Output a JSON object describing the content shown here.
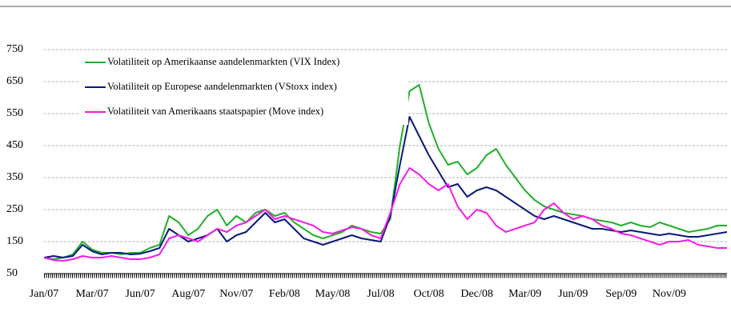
{
  "chart_data": {
    "type": "line",
    "categories": [
      "Jan/07",
      null,
      null,
      null,
      null,
      "Mar/07",
      null,
      null,
      null,
      null,
      "Jun/07",
      null,
      null,
      null,
      null,
      "Aug/07",
      null,
      null,
      null,
      null,
      "Nov/07",
      null,
      null,
      null,
      null,
      "Feb/08",
      null,
      null,
      null,
      null,
      "May/08",
      null,
      null,
      null,
      null,
      "Jul/08",
      null,
      null,
      null,
      null,
      "Oct/08",
      null,
      null,
      null,
      null,
      "Dec/08",
      null,
      null,
      null,
      null,
      "Mar/09",
      null,
      null,
      null,
      null,
      "Jun/09",
      null,
      null,
      null,
      null,
      "Sep/09",
      null,
      null,
      null,
      null,
      "Nov/09",
      null,
      null,
      null,
      null,
      null,
      null
    ],
    "series": [
      {
        "name": "Volatiliteit op Amerikaanse aandelenmarkten (VIX Index)",
        "color": "#22b02a",
        "values": [
          100,
          95,
          100,
          110,
          150,
          125,
          115,
          115,
          110,
          115,
          115,
          130,
          140,
          230,
          210,
          170,
          190,
          230,
          250,
          200,
          230,
          210,
          240,
          250,
          230,
          240,
          210,
          190,
          170,
          160,
          170,
          180,
          200,
          190,
          180,
          175,
          220,
          450,
          620,
          640,
          520,
          440,
          390,
          400,
          360,
          380,
          420,
          440,
          390,
          350,
          310,
          280,
          260,
          250,
          240,
          235,
          230,
          220,
          215,
          210,
          200,
          210,
          200,
          195,
          210,
          200,
          190,
          180,
          185,
          190,
          200,
          200
        ]
      },
      {
        "name": "Volatiliteit op Europese aandelenmarkten (VStoxx index)",
        "color": "#0a1a78",
        "values": [
          100,
          105,
          100,
          105,
          140,
          120,
          110,
          115,
          115,
          110,
          112,
          120,
          130,
          190,
          170,
          150,
          160,
          170,
          190,
          150,
          170,
          180,
          210,
          240,
          210,
          220,
          190,
          160,
          150,
          140,
          150,
          160,
          170,
          160,
          155,
          150,
          230,
          390,
          540,
          480,
          420,
          370,
          320,
          330,
          290,
          310,
          320,
          310,
          290,
          270,
          250,
          230,
          220,
          230,
          220,
          210,
          200,
          190,
          190,
          185,
          180,
          185,
          180,
          175,
          170,
          175,
          170,
          165,
          165,
          170,
          175,
          180
        ]
      },
      {
        "name": "Volatiliteit van Amerikaans staatspapier (Move index)",
        "color": "#f21ee6",
        "values": [
          100,
          92,
          90,
          95,
          105,
          100,
          100,
          105,
          100,
          95,
          95,
          100,
          110,
          160,
          170,
          160,
          150,
          170,
          190,
          180,
          200,
          210,
          230,
          250,
          220,
          230,
          220,
          210,
          200,
          180,
          175,
          185,
          195,
          190,
          170,
          160,
          240,
          330,
          380,
          360,
          330,
          310,
          330,
          260,
          220,
          250,
          240,
          200,
          180,
          190,
          200,
          210,
          250,
          270,
          240,
          220,
          230,
          220,
          200,
          190,
          175,
          170,
          160,
          150,
          140,
          150,
          150,
          155,
          140,
          135,
          130,
          130
        ]
      }
    ],
    "ylim": [
      50,
      750
    ],
    "yticks": [
      50,
      150,
      250,
      350,
      450,
      550,
      650,
      750
    ],
    "grid": true,
    "legend": "upper left"
  }
}
